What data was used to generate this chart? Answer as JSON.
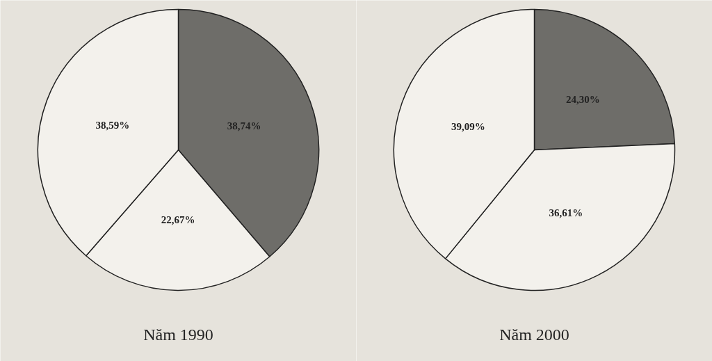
{
  "chart_data": [
    {
      "type": "pie",
      "title": "Năm 1990",
      "categories": [
        null,
        null,
        null
      ],
      "values": [
        38.74,
        22.67,
        38.59
      ],
      "colors": [
        "#6e6d69",
        "#f3f1ec",
        "#f3f1ec"
      ],
      "value_labels": [
        "38,74%",
        "22,67%",
        "38,59%"
      ]
    },
    {
      "type": "pie",
      "title": "Năm 2000",
      "categories": [
        null,
        null,
        null
      ],
      "values": [
        24.3,
        36.61,
        39.09
      ],
      "colors": [
        "#6e6d69",
        "#f3f1ec",
        "#f3f1ec"
      ],
      "value_labels": [
        "24,30%",
        "36,61%",
        "39,09%"
      ]
    }
  ]
}
